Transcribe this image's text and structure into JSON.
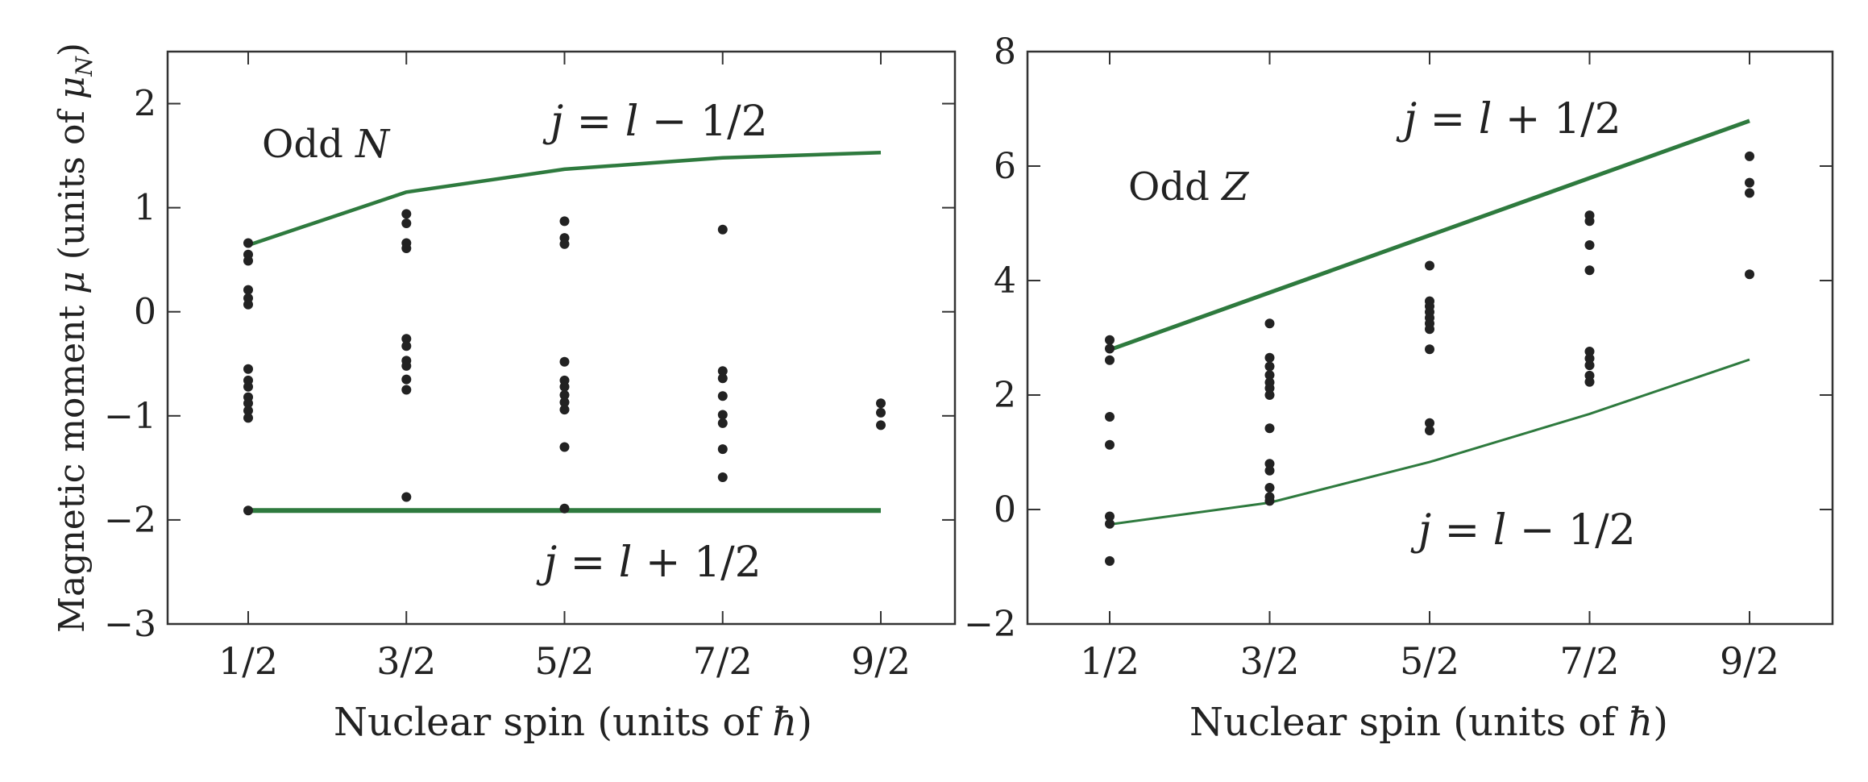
{
  "colors": {
    "theory_line": "#2e7a3e",
    "data_point": "#222222",
    "axis": "#333333"
  },
  "x_tick_labels": [
    "1/2",
    "3/2",
    "5/2",
    "7/2",
    "9/2"
  ],
  "xlabel": {
    "prefix": "Nuclear spin (units of ",
    "symbol": "ħ",
    "suffix": ")"
  },
  "left_ylabel": {
    "prefix": "Magnetic moment ",
    "mu": "μ",
    "mid": " (units of ",
    "mu_n": "μ",
    "sub": "N",
    "suffix": ")"
  },
  "chart_data": [
    {
      "type": "scatter",
      "annotation": {
        "word": "Odd ",
        "letter": "N"
      },
      "x": [
        0.5,
        1.5,
        2.5,
        3.5,
        4.5
      ],
      "ylim": [
        -3,
        2.5
      ],
      "y_ticks": [
        -3,
        -2,
        -1,
        0,
        1,
        2
      ],
      "y_tick_labels": [
        "−3",
        "−2",
        "−1",
        "0",
        "1",
        "2"
      ],
      "lines": [
        {
          "label": {
            "j": "j",
            "eq": " = ",
            "l": "l",
            "op": " − ",
            "frac": "1/2"
          },
          "points": [
            [
              0.5,
              0.64
            ],
            [
              1.5,
              1.15
            ],
            [
              2.5,
              1.37
            ],
            [
              3.5,
              1.48
            ],
            [
              4.5,
              1.53
            ]
          ]
        },
        {
          "label": {
            "j": "j",
            "eq": " = ",
            "l": "l",
            "op": " + ",
            "frac": "1/2"
          },
          "points": [
            [
              0.5,
              -1.91
            ],
            [
              1.5,
              -1.91
            ],
            [
              2.5,
              -1.91
            ],
            [
              3.5,
              -1.91
            ],
            [
              4.5,
              -1.91
            ]
          ]
        }
      ],
      "points": [
        [
          0.5,
          0.66
        ],
        [
          0.5,
          0.55
        ],
        [
          0.5,
          0.49
        ],
        [
          0.5,
          0.21
        ],
        [
          0.5,
          0.13
        ],
        [
          0.5,
          0.07
        ],
        [
          0.5,
          -0.55
        ],
        [
          0.5,
          -0.66
        ],
        [
          0.5,
          -0.72
        ],
        [
          0.5,
          -0.82
        ],
        [
          0.5,
          -0.88
        ],
        [
          0.5,
          -0.95
        ],
        [
          0.5,
          -1.02
        ],
        [
          0.5,
          -1.91
        ],
        [
          1.5,
          0.94
        ],
        [
          1.5,
          0.85
        ],
        [
          1.5,
          0.66
        ],
        [
          1.5,
          0.61
        ],
        [
          1.5,
          -0.26
        ],
        [
          1.5,
          -0.33
        ],
        [
          1.5,
          -0.47
        ],
        [
          1.5,
          -0.52
        ],
        [
          1.5,
          -0.65
        ],
        [
          1.5,
          -0.75
        ],
        [
          1.5,
          -1.78
        ],
        [
          2.5,
          0.87
        ],
        [
          2.5,
          0.71
        ],
        [
          2.5,
          0.65
        ],
        [
          2.5,
          -0.48
        ],
        [
          2.5,
          -0.66
        ],
        [
          2.5,
          -0.72
        ],
        [
          2.5,
          -0.8
        ],
        [
          2.5,
          -0.87
        ],
        [
          2.5,
          -0.94
        ],
        [
          2.5,
          -1.3
        ],
        [
          2.5,
          -1.89
        ],
        [
          3.5,
          0.79
        ],
        [
          3.5,
          -0.57
        ],
        [
          3.5,
          -0.64
        ],
        [
          3.5,
          -0.81
        ],
        [
          3.5,
          -0.99
        ],
        [
          3.5,
          -1.07
        ],
        [
          3.5,
          -1.32
        ],
        [
          3.5,
          -1.59
        ],
        [
          4.5,
          -0.88
        ],
        [
          4.5,
          -0.97
        ],
        [
          4.5,
          -1.09
        ]
      ]
    },
    {
      "type": "scatter",
      "annotation": {
        "word": "Odd ",
        "letter": "Z"
      },
      "x": [
        0.5,
        1.5,
        2.5,
        3.5,
        4.5
      ],
      "ylim": [
        -2,
        8
      ],
      "y_ticks": [
        -2,
        0,
        2,
        4,
        6,
        8
      ],
      "y_tick_labels": [
        "−2",
        "0",
        "2",
        "4",
        "6",
        "8"
      ],
      "lines": [
        {
          "label": {
            "j": "j",
            "eq": " = ",
            "l": "l",
            "op": " + ",
            "frac": "1/2"
          },
          "points": [
            [
              0.5,
              2.79
            ],
            [
              1.5,
              3.79
            ],
            [
              2.5,
              4.79
            ],
            [
              3.5,
              5.79
            ],
            [
              4.5,
              6.79
            ]
          ]
        },
        {
          "label": {
            "j": "j",
            "eq": " = ",
            "l": "l",
            "op": " − ",
            "frac": "1/2"
          },
          "points": [
            [
              0.5,
              -0.26
            ],
            [
              1.5,
              0.12
            ],
            [
              2.5,
              0.83
            ],
            [
              3.5,
              1.67
            ],
            [
              4.5,
              2.62
            ]
          ]
        }
      ],
      "points": [
        [
          0.5,
          2.96
        ],
        [
          0.5,
          2.81
        ],
        [
          0.5,
          2.61
        ],
        [
          0.5,
          1.62
        ],
        [
          0.5,
          1.13
        ],
        [
          0.5,
          -0.12
        ],
        [
          0.5,
          -0.25
        ],
        [
          0.5,
          -0.9
        ],
        [
          1.5,
          3.25
        ],
        [
          1.5,
          2.65
        ],
        [
          1.5,
          2.5
        ],
        [
          1.5,
          2.35
        ],
        [
          1.5,
          2.22
        ],
        [
          1.5,
          2.12
        ],
        [
          1.5,
          2.0
        ],
        [
          1.5,
          1.42
        ],
        [
          1.5,
          0.8
        ],
        [
          1.5,
          0.68
        ],
        [
          1.5,
          0.38
        ],
        [
          1.5,
          0.22
        ],
        [
          1.5,
          0.15
        ],
        [
          2.5,
          4.26
        ],
        [
          2.5,
          3.64
        ],
        [
          2.5,
          3.55
        ],
        [
          2.5,
          3.45
        ],
        [
          2.5,
          3.35
        ],
        [
          2.5,
          3.25
        ],
        [
          2.5,
          3.15
        ],
        [
          2.5,
          2.8
        ],
        [
          2.5,
          1.51
        ],
        [
          2.5,
          1.38
        ],
        [
          3.5,
          5.14
        ],
        [
          3.5,
          5.04
        ],
        [
          3.5,
          4.62
        ],
        [
          3.5,
          4.18
        ],
        [
          3.5,
          2.76
        ],
        [
          3.5,
          2.64
        ],
        [
          3.5,
          2.52
        ],
        [
          3.5,
          2.34
        ],
        [
          3.5,
          2.23
        ],
        [
          4.5,
          6.17
        ],
        [
          4.5,
          5.71
        ],
        [
          4.5,
          5.53
        ],
        [
          4.5,
          4.11
        ]
      ]
    }
  ]
}
